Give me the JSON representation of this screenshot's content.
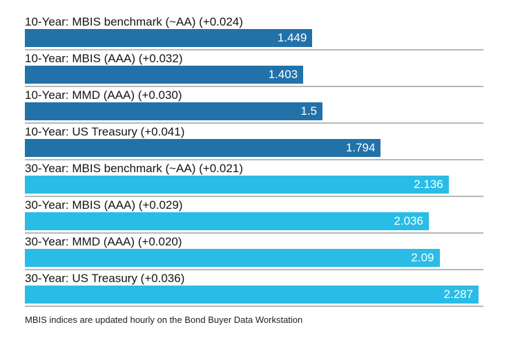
{
  "chart_data": {
    "type": "bar",
    "orientation": "horizontal",
    "title": "",
    "xlabel": "",
    "ylabel": "",
    "xlim": [
      0,
      2.311
    ],
    "grid": "row-separator-lines",
    "legend": "none",
    "value_labels_position": "inside-end",
    "categories": [
      "10-Year: MBIS benchmark (~AA) (+0.024)",
      "10-Year: MBIS (AAA) (+0.032)",
      "10-Year: MMD (AAA) (+0.030)",
      "10-Year: US Treasury (+0.041)",
      "30-Year: MBIS benchmark (~AA) (+0.021)",
      "30-Year: MBIS (AAA) (+0.029)",
      "30-Year: MMD (AAA) (+0.020)",
      "30-Year: US Treasury (+0.036)"
    ],
    "values": [
      1.449,
      1.403,
      1.5,
      1.794,
      2.136,
      2.036,
      2.09,
      2.287
    ],
    "rows": [
      {
        "label": "10-Year: MBIS benchmark (~AA) (+0.024)",
        "value": 1.449,
        "display": "1.449",
        "group": "10-year"
      },
      {
        "label": "10-Year: MBIS (AAA) (+0.032)",
        "value": 1.403,
        "display": "1.403",
        "group": "10-year"
      },
      {
        "label": "10-Year: MMD (AAA) (+0.030)",
        "value": 1.5,
        "display": "1.5",
        "group": "10-year"
      },
      {
        "label": "10-Year: US Treasury (+0.041)",
        "value": 1.794,
        "display": "1.794",
        "group": "10-year"
      },
      {
        "label": "30-Year: MBIS benchmark (~AA) (+0.021)",
        "value": 2.136,
        "display": "2.136",
        "group": "30-year"
      },
      {
        "label": "30-Year: MBIS (AAA) (+0.029)",
        "value": 2.036,
        "display": "2.036",
        "group": "30-year"
      },
      {
        "label": "30-Year: MMD (AAA) (+0.020)",
        "value": 2.09,
        "display": "2.09",
        "group": "30-year"
      },
      {
        "label": "30-Year: US Treasury (+0.036)",
        "value": 2.287,
        "display": "2.287",
        "group": "30-year"
      }
    ],
    "groups": [
      {
        "name": "10-year",
        "color": "#2272a9"
      },
      {
        "name": "30-year",
        "color": "#29bce6"
      }
    ]
  },
  "footer": {
    "note": "MBIS indices are updated hourly on the Bond Buyer Data Workstation"
  },
  "colors": {
    "bar_10_year": "#2272a9",
    "bar_30_year": "#29bce6",
    "gridline": "#b7b7b7",
    "label_text": "#141414",
    "value_text": "#ffffff",
    "footnote_text": "#1e1e1e",
    "background": "#ffffff"
  }
}
